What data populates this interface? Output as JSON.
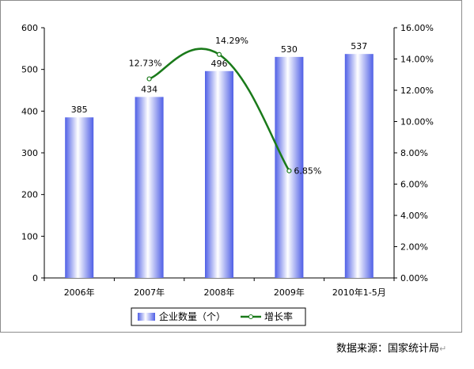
{
  "chart_data": {
    "type": "bar+line",
    "categories": [
      "2006年",
      "2007年",
      "2008年",
      "2009年",
      "2010年1-5月"
    ],
    "series": [
      {
        "name": "企业数量（个）",
        "type": "bar",
        "axis": "left",
        "values": [
          385,
          434,
          496,
          530,
          537
        ],
        "labels": [
          "385",
          "434",
          "496",
          "530",
          "537"
        ]
      },
      {
        "name": "增长率",
        "type": "line",
        "axis": "right",
        "values": [
          null,
          12.73,
          14.29,
          6.85,
          null
        ],
        "labels": [
          "",
          "12.73%",
          "14.29%",
          "6.85%",
          ""
        ]
      }
    ],
    "left_axis": {
      "min": 0,
      "max": 600,
      "ticks": [
        "0",
        "100",
        "200",
        "300",
        "400",
        "500",
        "600"
      ]
    },
    "right_axis": {
      "min": 0,
      "max": 16,
      "ticks": [
        "0.00%",
        "2.00%",
        "4.00%",
        "6.00%",
        "8.00%",
        "10.00%",
        "12.00%",
        "14.00%",
        "16.00%"
      ]
    },
    "legend_position": "bottom",
    "colors": {
      "bar_light": "#ffffff",
      "bar_dark": "#4f5fe6",
      "line": "#1a7a1a"
    }
  },
  "source_note": "数据来源：国家统计局",
  "source_mark": "↵"
}
